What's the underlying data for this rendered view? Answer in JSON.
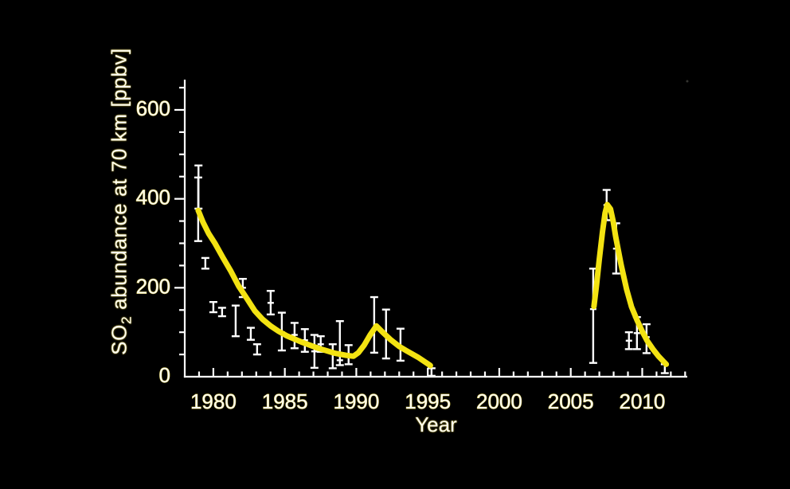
{
  "figure": {
    "background_color": "#000000",
    "axis_color": "#ffffff",
    "errorbar_color": "#ffffff",
    "curve_color": "#f3e312",
    "text_color": "#fffdf0",
    "text_halo_color": "#c9b83f"
  },
  "chart_data": {
    "type": "line",
    "title": "",
    "xlabel": "Year",
    "ylabel": "SO2 abundance at 70 km [ppbv]",
    "ylabel_parts": {
      "pre": "SO",
      "sub": "2",
      "post": " abundance at 70 km [ppbv]"
    },
    "xlim": [
      1978.0,
      2013.15
    ],
    "ylim": [
      0,
      668
    ],
    "x_major_ticks": [
      1980,
      1985,
      1990,
      1995,
      2000,
      2005,
      2010
    ],
    "x_minor_tick_step": 1,
    "x_minor_tick_range": [
      1979,
      2013
    ],
    "y_major_ticks": [
      0,
      200,
      400,
      600
    ],
    "y_minor_tick_step": 50,
    "y_minor_tick_range": [
      50,
      650
    ],
    "grid": false,
    "legend_position": "none",
    "series": [
      {
        "name": "model-fit-1979-1995",
        "type": "line",
        "color": "#f3e312",
        "points": [
          [
            1978.94,
            374
          ],
          [
            1979.28,
            347
          ],
          [
            1979.67,
            322
          ],
          [
            1980.11,
            300
          ],
          [
            1980.67,
            268
          ],
          [
            1981.23,
            237
          ],
          [
            1981.78,
            203
          ],
          [
            1982.34,
            176
          ],
          [
            1982.9,
            148
          ],
          [
            1983.45,
            129
          ],
          [
            1984.01,
            114
          ],
          [
            1984.57,
            102
          ],
          [
            1985.13,
            92
          ],
          [
            1986.24,
            77
          ],
          [
            1987.35,
            64
          ],
          [
            1988.47,
            53
          ],
          [
            1989.3,
            48
          ],
          [
            1989.8,
            46
          ],
          [
            1990.15,
            54
          ],
          [
            1990.55,
            71
          ],
          [
            1990.97,
            94
          ],
          [
            1991.4,
            114
          ],
          [
            1991.85,
            100
          ],
          [
            1992.37,
            84
          ],
          [
            1993.0,
            68
          ],
          [
            1993.48,
            59
          ],
          [
            1994.3,
            44
          ],
          [
            1995.0,
            29
          ],
          [
            1995.18,
            25
          ]
        ]
      },
      {
        "name": "model-fit-2006-2012",
        "type": "line",
        "color": "#f3e312",
        "points": [
          [
            2006.62,
            158
          ],
          [
            2006.8,
            205
          ],
          [
            2007.0,
            265
          ],
          [
            2007.22,
            325
          ],
          [
            2007.4,
            368
          ],
          [
            2007.55,
            387
          ],
          [
            2007.78,
            377
          ],
          [
            2007.97,
            349
          ],
          [
            2008.14,
            315
          ],
          [
            2008.52,
            252
          ],
          [
            2008.91,
            196
          ],
          [
            2009.25,
            157
          ],
          [
            2009.64,
            127
          ],
          [
            2010.03,
            100
          ],
          [
            2010.36,
            80
          ],
          [
            2010.75,
            62
          ],
          [
            2011.14,
            46
          ],
          [
            2011.47,
            35
          ],
          [
            2011.68,
            28
          ]
        ]
      },
      {
        "name": "so2-observations",
        "type": "errorbar",
        "color": "#ffffff",
        "points": [
          {
            "year": 1978.94,
            "lo": 305,
            "hi": 448,
            "mid": null
          },
          {
            "year": 1978.96,
            "lo": 378,
            "hi": 475,
            "mid": null
          },
          {
            "year": 1979.44,
            "lo": 243,
            "hi": 267,
            "mid": null
          },
          {
            "year": 1980.0,
            "lo": 145,
            "hi": 168,
            "mid": null
          },
          {
            "year": 1980.61,
            "lo": 136,
            "hi": 155,
            "mid": null
          },
          {
            "year": 1981.56,
            "lo": 91,
            "hi": 160,
            "mid": null
          },
          {
            "year": 1982.06,
            "lo": 179,
            "hi": 220,
            "mid": 200
          },
          {
            "year": 1982.62,
            "lo": 83,
            "hi": 110,
            "mid": null
          },
          {
            "year": 1983.06,
            "lo": 50,
            "hi": 73,
            "mid": null
          },
          {
            "year": 1984.01,
            "lo": 140,
            "hi": 193,
            "mid": 166
          },
          {
            "year": 1984.79,
            "lo": 59,
            "hi": 144,
            "mid": 100
          },
          {
            "year": 1985.68,
            "lo": 64,
            "hi": 121,
            "mid": 94
          },
          {
            "year": 1986.4,
            "lo": 56,
            "hi": 107,
            "mid": 82
          },
          {
            "year": 1987.07,
            "lo": 20,
            "hi": 94,
            "mid": 57
          },
          {
            "year": 1987.51,
            "lo": 56,
            "hi": 91,
            "mid": 73
          },
          {
            "year": 1988.35,
            "lo": 19,
            "hi": 73,
            "mid": 53
          },
          {
            "year": 1988.85,
            "lo": 26,
            "hi": 125,
            "mid": 37
          },
          {
            "year": 1989.46,
            "lo": 28,
            "hi": 71,
            "mid": 49
          },
          {
            "year": 1991.25,
            "lo": 54,
            "hi": 179,
            "mid": null
          },
          {
            "year": 1992.08,
            "lo": 41,
            "hi": 151,
            "mid": null
          },
          {
            "year": 1993.09,
            "lo": 36,
            "hi": 108,
            "mid": null
          },
          {
            "year": 1995.26,
            "lo": 2,
            "hi": 19,
            "mid": null
          },
          {
            "year": 2006.57,
            "lo": 31,
            "hi": 243,
            "mid": 152
          },
          {
            "year": 2007.51,
            "lo": 352,
            "hi": 420,
            "mid": 386
          },
          {
            "year": 2008.18,
            "lo": 232,
            "hi": 345,
            "mid": 288
          },
          {
            "year": 2009.07,
            "lo": 62,
            "hi": 100,
            "mid": 81
          },
          {
            "year": 2009.63,
            "lo": 62,
            "hi": 134,
            "mid": 98
          },
          {
            "year": 2010.3,
            "lo": 53,
            "hi": 118,
            "mid": 89
          },
          {
            "year": 2011.58,
            "lo": 8,
            "hi": 28,
            "mid": null
          }
        ]
      }
    ]
  }
}
